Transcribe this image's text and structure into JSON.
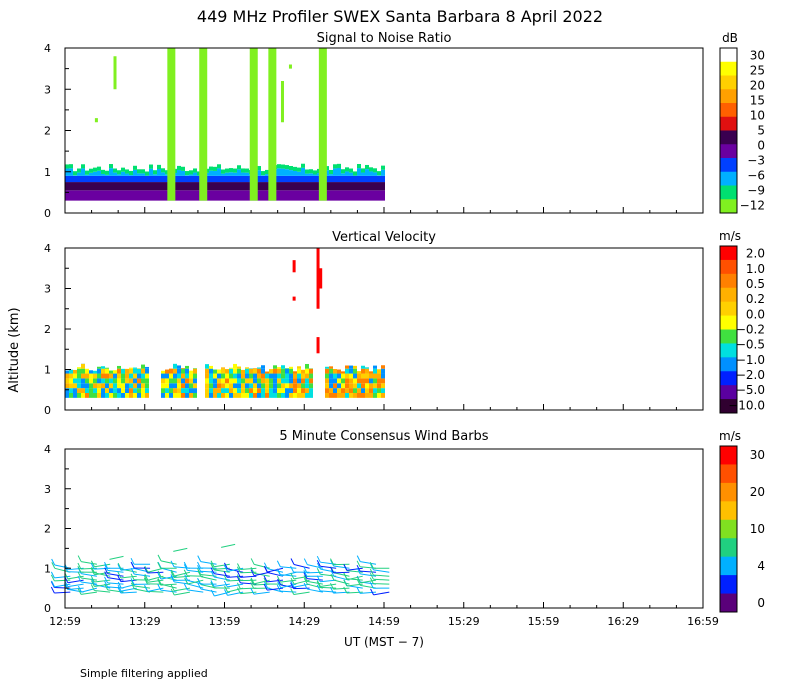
{
  "title": "449 MHz Profiler SWEX Santa Barbara  8 April 2022",
  "ylabel": "Altitude (km)",
  "xlabel": "UT  (MST − 7)",
  "note": "Simple filtering applied",
  "chart_data": [
    {
      "type": "heatmap",
      "subtitle": "Signal to Noise Ratio",
      "ylabel": "Altitude (km)",
      "xlim": [
        "12:59",
        "16:59"
      ],
      "ylim": [
        0,
        4
      ],
      "x_ticks": [
        "12:59",
        "13:29",
        "13:59",
        "14:29",
        "14:59",
        "15:29",
        "15:59",
        "16:29",
        "16:59"
      ],
      "y_ticks": [
        "0",
        "1",
        "2",
        "3",
        "4"
      ],
      "data_end": "14:59",
      "colorbar": {
        "unit": "dB",
        "labels": [
          "30",
          "25",
          "20",
          "15",
          "10",
          "5",
          "0",
          "−3",
          "−6",
          "−9",
          "−12"
        ],
        "colors": [
          "#ffffff",
          "#ffff00",
          "#ffd000",
          "#ffa000",
          "#ff6000",
          "#e01010",
          "#3a0050",
          "#6a00a0",
          "#0040ff",
          "#00b0ff",
          "#00e070",
          "#80f020"
        ]
      },
      "series": [
        {
          "layer": "strong echo",
          "alt_range_km": [
            0.3,
            0.8
          ],
          "level_dB": "-3 to 5"
        },
        {
          "layer": "boundary layer top",
          "alt_range_km": [
            0.8,
            1.2
          ],
          "level_dB": "-12 to -3"
        },
        {
          "layer": "vertical streaks",
          "alt_range_km": [
            0.3,
            4.0
          ],
          "level_dB": "-12",
          "times": [
            "13:39",
            "13:51",
            "14:10",
            "14:17",
            "14:36"
          ]
        }
      ]
    },
    {
      "type": "heatmap",
      "subtitle": "Vertical Velocity",
      "ylabel": "Altitude (km)",
      "xlim": [
        "12:59",
        "16:59"
      ],
      "ylim": [
        0,
        4
      ],
      "x_ticks": [
        "12:59",
        "13:29",
        "13:59",
        "14:29",
        "14:59",
        "15:29",
        "15:59",
        "16:29",
        "16:59"
      ],
      "y_ticks": [
        "0",
        "1",
        "2",
        "3",
        "4"
      ],
      "data_end": "14:59",
      "colorbar": {
        "unit": "m/s",
        "labels": [
          "2.0",
          "1.0",
          "0.5",
          "0.2",
          "0.0",
          "−0.2",
          "−0.5",
          "−1.0",
          "−2.0",
          "−5.0",
          "−10.0"
        ],
        "colors": [
          "#ff0000",
          "#ff5000",
          "#ff8000",
          "#ffb000",
          "#ffd000",
          "#ffff00",
          "#40e040",
          "#00e0e0",
          "#0090ff",
          "#0020ff",
          "#5a00a0",
          "#300030"
        ]
      },
      "series": [
        {
          "layer": "boundary layer",
          "alt_range_km": [
            0.3,
            1.1
          ],
          "range_ms": "-2.0 to 1.0"
        },
        {
          "layer": "isolated returns",
          "alt_range_km": [
            1.4,
            4.0
          ],
          "range_ms": "2.0",
          "times": [
            "14:25",
            "14:34",
            "14:35"
          ]
        }
      ]
    },
    {
      "type": "scatter",
      "subtitle": "5 Minute Consensus Wind Barbs",
      "ylabel": "Altitude (km)",
      "xlim": [
        "12:59",
        "16:59"
      ],
      "ylim": [
        0,
        4
      ],
      "x_ticks": [
        "12:59",
        "13:29",
        "13:59",
        "14:29",
        "14:59",
        "15:29",
        "15:59",
        "16:29",
        "16:59"
      ],
      "y_ticks": [
        "0",
        "1",
        "2",
        "3",
        "4"
      ],
      "data_end": "14:59",
      "colorbar": {
        "unit": "m/s",
        "labels": [
          "30",
          "20",
          "10",
          "4",
          "0"
        ],
        "colors": [
          "#ff0000",
          "#ff5000",
          "#ff9000",
          "#ffc000",
          "#80e020",
          "#20d080",
          "#00b0ff",
          "#0020ff",
          "#5a007a"
        ]
      },
      "series": [
        {
          "layer": "wind barbs",
          "alt_range_km": [
            0.35,
            1.8
          ],
          "speed_ms": "4 to 12",
          "interval_min": 5
        }
      ]
    }
  ]
}
